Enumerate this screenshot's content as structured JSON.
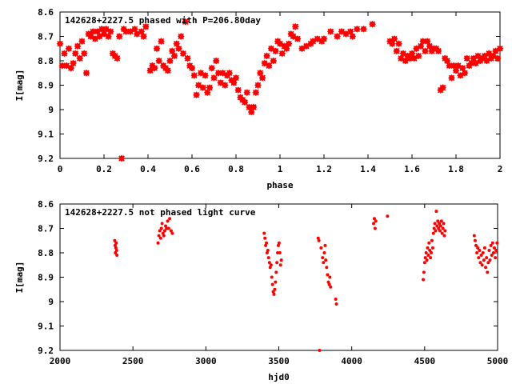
{
  "chart_data": [
    {
      "type": "scatter",
      "title": "142628+2227.5 phased with P=206.80day",
      "xlabel": "phase",
      "ylabel": "I[mag]",
      "xlim": [
        0,
        2
      ],
      "ylim": [
        9.2,
        8.6
      ],
      "y_inverted": true,
      "x_ticks": [
        "0",
        "0.2",
        "0.4",
        "0.6",
        "0.8",
        "1",
        "1.2",
        "1.4",
        "1.6",
        "1.8",
        "2"
      ],
      "y_ticks": [
        "8.6",
        "8.7",
        "8.8",
        "8.9",
        "9",
        "9.1",
        "9.2"
      ],
      "grid": false,
      "marker_color": "#ff0000",
      "points": [
        [
          0.0,
          8.73
        ],
        [
          0.01,
          8.82
        ],
        [
          0.02,
          8.77
        ],
        [
          0.03,
          8.82
        ],
        [
          0.04,
          8.75
        ],
        [
          0.05,
          8.83
        ],
        [
          0.06,
          8.81
        ],
        [
          0.07,
          8.77
        ],
        [
          0.08,
          8.74
        ],
        [
          0.09,
          8.79
        ],
        [
          0.1,
          8.72
        ],
        [
          0.11,
          8.77
        ],
        [
          0.12,
          8.85
        ],
        [
          0.13,
          8.69
        ],
        [
          0.14,
          8.7
        ],
        [
          0.15,
          8.68
        ],
        [
          0.16,
          8.71
        ],
        [
          0.17,
          8.68
        ],
        [
          0.18,
          8.7
        ],
        [
          0.19,
          8.67
        ],
        [
          0.2,
          8.69
        ],
        [
          0.21,
          8.67
        ],
        [
          0.22,
          8.7
        ],
        [
          0.23,
          8.68
        ],
        [
          0.24,
          8.77
        ],
        [
          0.25,
          8.78
        ],
        [
          0.26,
          8.79
        ],
        [
          0.27,
          8.7
        ],
        [
          0.28,
          9.2
        ],
        [
          0.29,
          8.67
        ],
        [
          0.3,
          8.68
        ],
        [
          0.32,
          8.68
        ],
        [
          0.34,
          8.67
        ],
        [
          0.35,
          8.69
        ],
        [
          0.37,
          8.68
        ],
        [
          0.38,
          8.7
        ],
        [
          0.39,
          8.66
        ],
        [
          0.41,
          8.84
        ],
        [
          0.42,
          8.82
        ],
        [
          0.43,
          8.83
        ],
        [
          0.44,
          8.75
        ],
        [
          0.45,
          8.8
        ],
        [
          0.46,
          8.72
        ],
        [
          0.47,
          8.82
        ],
        [
          0.48,
          8.83
        ],
        [
          0.49,
          8.84
        ],
        [
          0.5,
          8.8
        ],
        [
          0.51,
          8.76
        ],
        [
          0.52,
          8.78
        ],
        [
          0.53,
          8.73
        ],
        [
          0.54,
          8.75
        ],
        [
          0.55,
          8.7
        ],
        [
          0.56,
          8.77
        ],
        [
          0.57,
          8.64
        ],
        [
          0.58,
          8.79
        ],
        [
          0.59,
          8.82
        ],
        [
          0.6,
          8.83
        ],
        [
          0.61,
          8.86
        ],
        [
          0.62,
          8.94
        ],
        [
          0.63,
          8.9
        ],
        [
          0.64,
          8.85
        ],
        [
          0.65,
          8.91
        ],
        [
          0.66,
          8.86
        ],
        [
          0.67,
          8.93
        ],
        [
          0.68,
          8.91
        ],
        [
          0.69,
          8.83
        ],
        [
          0.7,
          8.87
        ],
        [
          0.71,
          8.8
        ],
        [
          0.72,
          8.85
        ],
        [
          0.73,
          8.89
        ],
        [
          0.74,
          8.85
        ],
        [
          0.75,
          8.9
        ],
        [
          0.76,
          8.86
        ],
        [
          0.77,
          8.85
        ],
        [
          0.78,
          8.88
        ],
        [
          0.79,
          8.89
        ],
        [
          0.8,
          8.87
        ],
        [
          0.81,
          8.92
        ],
        [
          0.82,
          8.95
        ],
        [
          0.83,
          8.96
        ],
        [
          0.84,
          8.97
        ],
        [
          0.85,
          8.93
        ],
        [
          0.86,
          8.99
        ],
        [
          0.87,
          9.01
        ],
        [
          0.88,
          8.99
        ],
        [
          0.89,
          8.93
        ],
        [
          0.9,
          8.9
        ],
        [
          0.91,
          8.85
        ],
        [
          0.92,
          8.87
        ],
        [
          0.93,
          8.81
        ],
        [
          0.94,
          8.78
        ],
        [
          0.95,
          8.82
        ],
        [
          0.96,
          8.75
        ],
        [
          0.97,
          8.8
        ],
        [
          0.98,
          8.76
        ],
        [
          0.99,
          8.72
        ],
        [
          1.0,
          8.73
        ],
        [
          1.01,
          8.77
        ],
        [
          1.02,
          8.74
        ],
        [
          1.03,
          8.75
        ],
        [
          1.04,
          8.73
        ],
        [
          1.05,
          8.69
        ],
        [
          1.06,
          8.7
        ],
        [
          1.07,
          8.66
        ],
        [
          1.08,
          8.71
        ],
        [
          1.1,
          8.75
        ],
        [
          1.12,
          8.74
        ],
        [
          1.14,
          8.73
        ],
        [
          1.15,
          8.72
        ],
        [
          1.17,
          8.71
        ],
        [
          1.19,
          8.72
        ],
        [
          1.2,
          8.71
        ],
        [
          1.23,
          8.68
        ],
        [
          1.26,
          8.7
        ],
        [
          1.28,
          8.68
        ],
        [
          1.3,
          8.69
        ],
        [
          1.32,
          8.68
        ],
        [
          1.33,
          8.7
        ],
        [
          1.35,
          8.67
        ],
        [
          1.38,
          8.67
        ],
        [
          1.42,
          8.65
        ],
        [
          1.5,
          8.72
        ],
        [
          1.51,
          8.73
        ],
        [
          1.52,
          8.71
        ],
        [
          1.53,
          8.76
        ],
        [
          1.54,
          8.73
        ],
        [
          1.55,
          8.79
        ],
        [
          1.56,
          8.77
        ],
        [
          1.57,
          8.8
        ],
        [
          1.58,
          8.78
        ],
        [
          1.59,
          8.79
        ],
        [
          1.6,
          8.77
        ],
        [
          1.61,
          8.79
        ],
        [
          1.62,
          8.75
        ],
        [
          1.63,
          8.78
        ],
        [
          1.64,
          8.74
        ],
        [
          1.65,
          8.72
        ],
        [
          1.66,
          8.76
        ],
        [
          1.67,
          8.72
        ],
        [
          1.68,
          8.74
        ],
        [
          1.69,
          8.76
        ],
        [
          1.7,
          8.75
        ],
        [
          1.71,
          8.75
        ],
        [
          1.72,
          8.76
        ],
        [
          1.73,
          8.92
        ],
        [
          1.74,
          8.91
        ],
        [
          1.75,
          8.79
        ],
        [
          1.76,
          8.8
        ],
        [
          1.77,
          8.82
        ],
        [
          1.78,
          8.87
        ],
        [
          1.79,
          8.82
        ],
        [
          1.8,
          8.84
        ],
        [
          1.81,
          8.82
        ],
        [
          1.82,
          8.86
        ],
        [
          1.83,
          8.83
        ],
        [
          1.84,
          8.85
        ],
        [
          1.85,
          8.79
        ],
        [
          1.86,
          8.82
        ],
        [
          1.87,
          8.81
        ],
        [
          1.88,
          8.79
        ],
        [
          1.89,
          8.81
        ],
        [
          1.9,
          8.78
        ],
        [
          1.91,
          8.8
        ],
        [
          1.92,
          8.79
        ],
        [
          1.93,
          8.78
        ],
        [
          1.94,
          8.8
        ],
        [
          1.95,
          8.77
        ],
        [
          1.96,
          8.79
        ],
        [
          1.97,
          8.78
        ],
        [
          1.98,
          8.76
        ],
        [
          1.99,
          8.79
        ],
        [
          2.0,
          8.75
        ]
      ]
    },
    {
      "type": "scatter",
      "title": "142628+2227.5 not phased light curve",
      "xlabel": "hjd0",
      "ylabel": "I[mag]",
      "xlim": [
        2000,
        5000
      ],
      "ylim": [
        9.2,
        8.6
      ],
      "y_inverted": true,
      "x_ticks": [
        "2000",
        "2500",
        "3000",
        "3500",
        "4000",
        "4500",
        "5000"
      ],
      "y_ticks": [
        "8.6",
        "8.7",
        "8.8",
        "8.9",
        "9",
        "9.1",
        "9.2"
      ],
      "grid": false,
      "marker_color": "#ff0000",
      "points": [
        [
          2375,
          8.75
        ],
        [
          2378,
          8.77
        ],
        [
          2380,
          8.8
        ],
        [
          2383,
          8.78
        ],
        [
          2385,
          8.76
        ],
        [
          2388,
          8.79
        ],
        [
          2390,
          8.81
        ],
        [
          2672,
          8.76
        ],
        [
          2678,
          8.73
        ],
        [
          2684,
          8.71
        ],
        [
          2690,
          8.74
        ],
        [
          2695,
          8.7
        ],
        [
          2700,
          8.68
        ],
        [
          2706,
          8.72
        ],
        [
          2712,
          8.73
        ],
        [
          2718,
          8.71
        ],
        [
          2724,
          8.69
        ],
        [
          2730,
          8.7
        ],
        [
          2738,
          8.67
        ],
        [
          2745,
          8.7
        ],
        [
          2752,
          8.66
        ],
        [
          2762,
          8.71
        ],
        [
          2770,
          8.72
        ],
        [
          3400,
          8.72
        ],
        [
          3405,
          8.74
        ],
        [
          3410,
          8.77
        ],
        [
          3415,
          8.76
        ],
        [
          3420,
          8.8
        ],
        [
          3425,
          8.79
        ],
        [
          3430,
          8.82
        ],
        [
          3436,
          8.84
        ],
        [
          3441,
          8.86
        ],
        [
          3447,
          8.85
        ],
        [
          3452,
          8.9
        ],
        [
          3457,
          8.93
        ],
        [
          3462,
          8.96
        ],
        [
          3467,
          8.97
        ],
        [
          3472,
          8.95
        ],
        [
          3477,
          8.92
        ],
        [
          3482,
          8.88
        ],
        [
          3487,
          8.84
        ],
        [
          3492,
          8.8
        ],
        [
          3497,
          8.77
        ],
        [
          3502,
          8.76
        ],
        [
          3507,
          8.8
        ],
        [
          3512,
          8.85
        ],
        [
          3517,
          8.83
        ],
        [
          3770,
          8.74
        ],
        [
          3775,
          8.75
        ],
        [
          3779,
          9.2
        ],
        [
          3790,
          8.78
        ],
        [
          3800,
          8.82
        ],
        [
          3806,
          8.84
        ],
        [
          3812,
          8.8
        ],
        [
          3818,
          8.77
        ],
        [
          3822,
          8.83
        ],
        [
          3828,
          8.86
        ],
        [
          3834,
          8.89
        ],
        [
          3840,
          8.92
        ],
        [
          3846,
          8.93
        ],
        [
          3850,
          8.9
        ],
        [
          3855,
          8.94
        ],
        [
          3890,
          8.99
        ],
        [
          3895,
          9.01
        ],
        [
          4150,
          8.68
        ],
        [
          4155,
          8.66
        ],
        [
          4160,
          8.7
        ],
        [
          4165,
          8.67
        ],
        [
          4245,
          8.65
        ],
        [
          4490,
          8.91
        ],
        [
          4495,
          8.88
        ],
        [
          4500,
          8.84
        ],
        [
          4505,
          8.82
        ],
        [
          4510,
          8.8
        ],
        [
          4515,
          8.83
        ],
        [
          4520,
          8.78
        ],
        [
          4525,
          8.81
        ],
        [
          4530,
          8.76
        ],
        [
          4535,
          8.79
        ],
        [
          4540,
          8.82
        ],
        [
          4545,
          8.8
        ],
        [
          4550,
          8.75
        ],
        [
          4555,
          8.78
        ],
        [
          4560,
          8.72
        ],
        [
          4565,
          8.7
        ],
        [
          4570,
          8.68
        ],
        [
          4575,
          8.71
        ],
        [
          4580,
          8.63
        ],
        [
          4585,
          8.69
        ],
        [
          4590,
          8.67
        ],
        [
          4595,
          8.7
        ],
        [
          4600,
          8.68
        ],
        [
          4605,
          8.71
        ],
        [
          4610,
          8.69
        ],
        [
          4615,
          8.67
        ],
        [
          4620,
          8.72
        ],
        [
          4625,
          8.7
        ],
        [
          4630,
          8.68
        ],
        [
          4635,
          8.73
        ],
        [
          4640,
          8.71
        ],
        [
          4840,
          8.73
        ],
        [
          4846,
          8.75
        ],
        [
          4852,
          8.77
        ],
        [
          4858,
          8.8
        ],
        [
          4864,
          8.78
        ],
        [
          4870,
          8.82
        ],
        [
          4876,
          8.79
        ],
        [
          4882,
          8.84
        ],
        [
          4888,
          8.81
        ],
        [
          4894,
          8.85
        ],
        [
          4900,
          8.8
        ],
        [
          4906,
          8.83
        ],
        [
          4912,
          8.78
        ],
        [
          4918,
          8.86
        ],
        [
          4924,
          8.82
        ],
        [
          4930,
          8.88
        ],
        [
          4936,
          8.84
        ],
        [
          4942,
          8.79
        ],
        [
          4948,
          8.83
        ],
        [
          4954,
          8.77
        ],
        [
          4960,
          8.81
        ],
        [
          4966,
          8.76
        ],
        [
          4972,
          8.8
        ],
        [
          4978,
          8.78
        ],
        [
          4984,
          8.82
        ],
        [
          4990,
          8.79
        ],
        [
          4996,
          8.76
        ]
      ]
    }
  ]
}
